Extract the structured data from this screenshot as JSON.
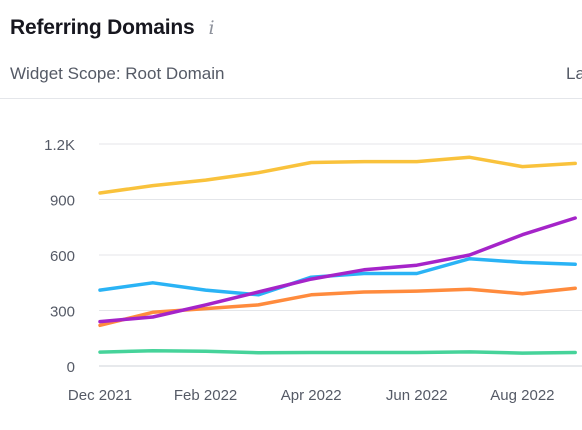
{
  "widget": {
    "title": "Referring Domains",
    "info_icon": "info-icon",
    "scope_label": "Widget Scope: Root Domain",
    "right_label_partial": "La"
  },
  "chart_data": {
    "type": "line",
    "title": "",
    "xlabel": "",
    "ylabel": "",
    "ylim": [
      0,
      1200
    ],
    "yticks": [
      0,
      300,
      600,
      900,
      1200
    ],
    "ytick_labels": [
      "0",
      "300",
      "600",
      "900",
      "1.2K"
    ],
    "x": [
      "Dec 2021",
      "Jan 2022",
      "Feb 2022",
      "Mar 2022",
      "Apr 2022",
      "May 2022",
      "Jun 2022",
      "Jul 2022",
      "Aug 2022",
      "Sep 2022"
    ],
    "xtick_labels": [
      "Dec 2021",
      "Feb 2022",
      "Apr 2022",
      "Jun 2022",
      "Aug 2022"
    ],
    "grid": true,
    "series": [
      {
        "color": "#f9c23c",
        "values": [
          935,
          975,
          1005,
          1045,
          1100,
          1105,
          1105,
          1128,
          1078,
          1095
        ]
      },
      {
        "color": "#2ab3f5",
        "values": [
          410,
          450,
          410,
          385,
          480,
          500,
          500,
          580,
          560,
          550
        ]
      },
      {
        "color": "#ff8b3d",
        "values": [
          220,
          290,
          310,
          330,
          385,
          400,
          405,
          415,
          390,
          420
        ]
      },
      {
        "color": "#a524c9",
        "values": [
          240,
          265,
          330,
          400,
          470,
          520,
          545,
          600,
          710,
          800
        ]
      },
      {
        "color": "#46d39a",
        "values": [
          75,
          82,
          80,
          72,
          73,
          73,
          73,
          76,
          70,
          73
        ]
      }
    ]
  }
}
